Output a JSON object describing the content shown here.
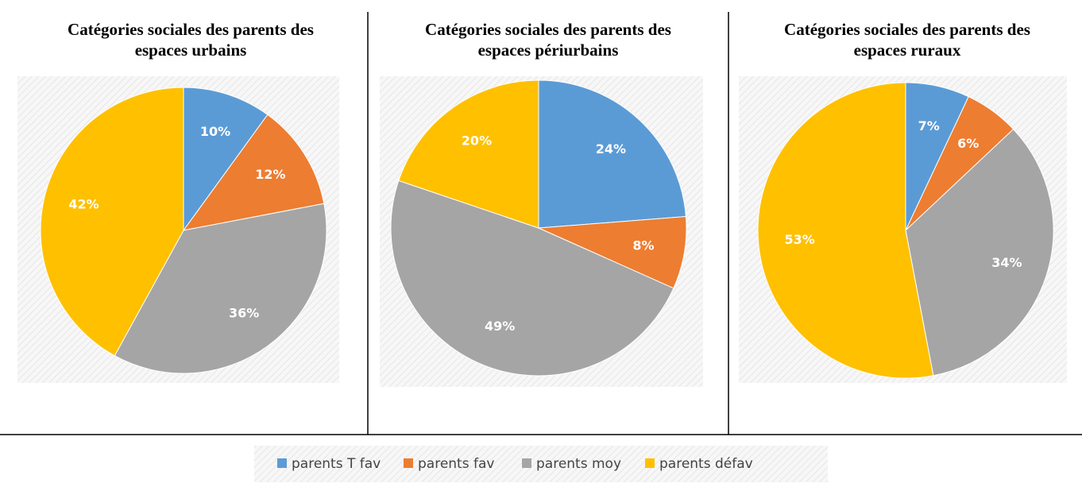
{
  "chart_data": [
    {
      "type": "pie",
      "title": [
        "Catégories sociales des parents des",
        "espaces urbains"
      ],
      "categories": [
        "parents T fav",
        "parents fav",
        "parents moy",
        "parents défav"
      ],
      "values": [
        10,
        12,
        36,
        42
      ],
      "value_labels": [
        "10%",
        "12%",
        "36%",
        "42%"
      ],
      "colors": [
        "#5b9bd5",
        "#ed7d31",
        "#a5a5a5",
        "#ffc000"
      ],
      "legend": "bottom"
    },
    {
      "type": "pie",
      "title": [
        "Catégories sociales des parents des",
        "espaces périurbains"
      ],
      "categories": [
        "parents T fav",
        "parents fav",
        "parents moy",
        "parents défav"
      ],
      "values": [
        24,
        8,
        49,
        20
      ],
      "value_labels": [
        "24%",
        "8%",
        "49%",
        "20%"
      ],
      "colors": [
        "#5b9bd5",
        "#ed7d31",
        "#a5a5a5",
        "#ffc000"
      ],
      "legend": "bottom"
    },
    {
      "type": "pie",
      "title": [
        "Catégories sociales des parents des",
        "espaces ruraux"
      ],
      "categories": [
        "parents T fav",
        "parents fav",
        "parents moy",
        "parents défav"
      ],
      "values": [
        7,
        6,
        34,
        53
      ],
      "value_labels": [
        "7%",
        "6%",
        "34%",
        "53%"
      ],
      "colors": [
        "#5b9bd5",
        "#ed7d31",
        "#a5a5a5",
        "#ffc000"
      ],
      "legend": "bottom"
    }
  ]
}
